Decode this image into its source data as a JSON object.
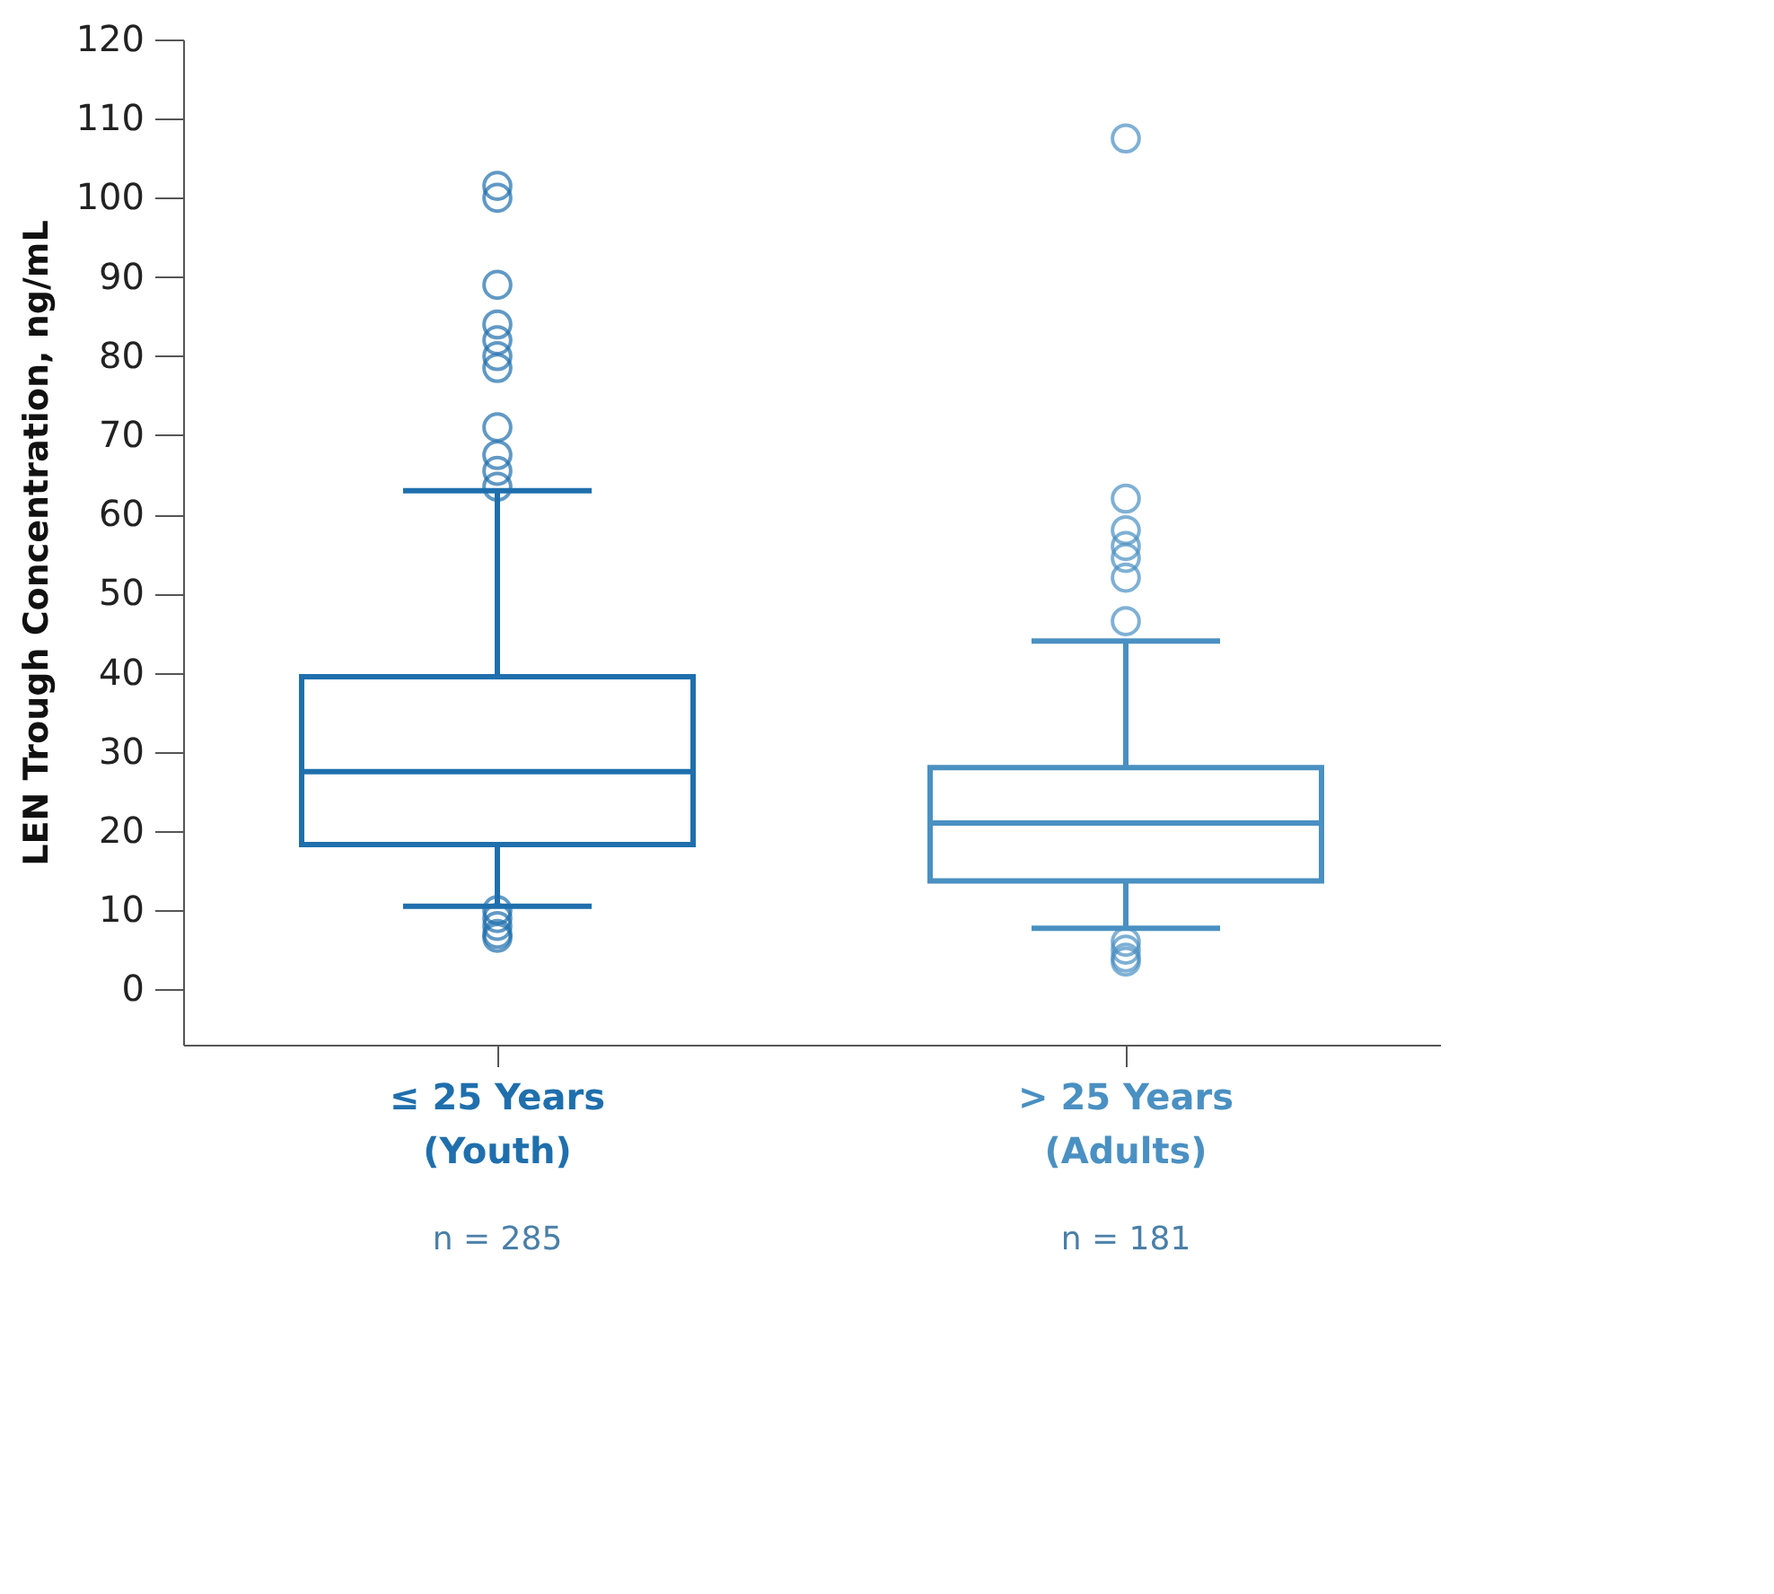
{
  "chart_data": {
    "type": "box",
    "ylabel": "LEN Trough Concentration, ng/mL",
    "categories": [
      "≤ 25 Years\n(Youth)",
      "> 25 Years\n(Adults)"
    ],
    "colors": [
      "#1f6fad",
      "#4a90c2"
    ],
    "boxes": [
      {
        "low": 10.5,
        "q1": 18.3,
        "median": 27.5,
        "q3": 39.5,
        "high": 63,
        "outliers": [
          101.5,
          100,
          89,
          84,
          82,
          80,
          78.5,
          71,
          67.5,
          65.5,
          63.5,
          10,
          9,
          8,
          7,
          6.5
        ]
      },
      {
        "low": 7.7,
        "q1": 13.7,
        "median": 21,
        "q3": 28,
        "high": 44,
        "outliers": [
          107.5,
          62,
          58,
          56,
          54.5,
          52,
          46.5,
          6,
          5,
          4,
          3.5
        ]
      }
    ],
    "ylim": [
      -7,
      120
    ],
    "yticks": [
      0,
      10,
      20,
      30,
      40,
      50,
      60,
      70,
      80,
      90,
      100,
      110,
      120
    ],
    "grid": false,
    "legend": false,
    "annotations": [
      "n = 285",
      "n = 181"
    ]
  }
}
